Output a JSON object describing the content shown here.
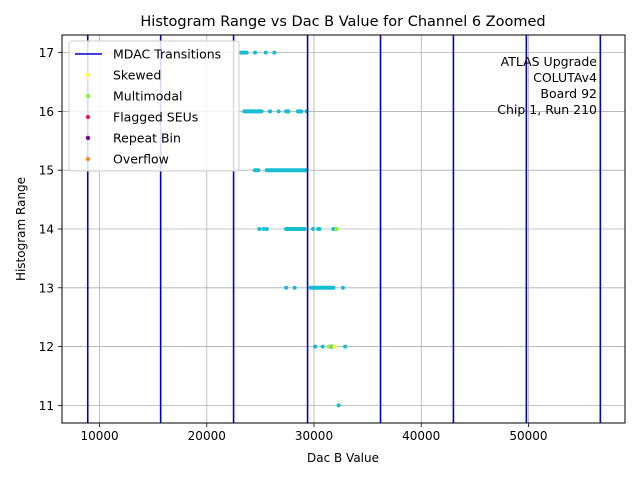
{
  "chart_data": {
    "type": "scatter",
    "title": "Histogram Range vs Dac B Value for Channel 6 Zoomed",
    "xlabel": "Dac B Value",
    "ylabel": "Histogram Range",
    "xlim": [
      6500,
      59000
    ],
    "ylim": [
      10.7,
      17.3
    ],
    "xticks": [
      10000,
      20000,
      30000,
      40000,
      50000
    ],
    "yticks": [
      11,
      12,
      13,
      14,
      15,
      16,
      17
    ],
    "grid": true,
    "legend_position": "upper-left",
    "annotation": [
      "ATLAS Upgrade",
      "COLUTAv4",
      "Board 92",
      "Chip 1, Run 210"
    ],
    "vlines": {
      "name": "MDAC Transitions",
      "color": "#0000cc",
      "x": [
        8900,
        15700,
        22500,
        29400,
        36200,
        43000,
        49800,
        56700
      ]
    },
    "legend": [
      {
        "label": "MDAC Transitions",
        "kind": "line",
        "color": "#0000cc"
      },
      {
        "label": "Skewed",
        "kind": "marker",
        "color": "#ffff33"
      },
      {
        "label": "Multimodal",
        "kind": "marker",
        "color": "#99ee33"
      },
      {
        "label": "Flagged SEUs",
        "kind": "marker",
        "color": "#dd2255"
      },
      {
        "label": "Repeat Bin",
        "kind": "marker",
        "color": "#770099"
      },
      {
        "label": "Overflow",
        "kind": "marker",
        "color": "#ff8822"
      }
    ],
    "point_color": "#17becf",
    "series": [
      {
        "y": 17,
        "runs": [
          [
            23000,
            23900
          ]
        ],
        "points": [
          24500,
          25500,
          26300
        ]
      },
      {
        "y": 16,
        "runs": [
          [
            23300,
            25300
          ],
          [
            25700,
            26100
          ],
          [
            27200,
            27800
          ],
          [
            28300,
            29000
          ]
        ],
        "points": [
          26700,
          29300
        ]
      },
      {
        "y": 15,
        "runs": [
          [
            24300,
            25000
          ],
          [
            25400,
            29500
          ]
        ],
        "points": []
      },
      {
        "y": 14,
        "runs": [
          [
            27200,
            29300
          ],
          [
            30200,
            30700
          ]
        ],
        "points": [
          24900,
          25300,
          25600,
          29900,
          31800,
          32100
        ]
      },
      {
        "y": 13,
        "runs": [
          [
            29500,
            32000
          ]
        ],
        "points": [
          27400,
          28200,
          32700
        ]
      },
      {
        "y": 12,
        "runs": [
          [
            31300,
            32000
          ]
        ],
        "points": [
          30100,
          30800,
          32900
        ]
      },
      {
        "y": 11,
        "runs": [],
        "points": [
          32300
        ]
      }
    ],
    "highlight_points": [
      {
        "x": 32100,
        "y": 14,
        "color": "#99ee33"
      },
      {
        "x": 31900,
        "y": 12,
        "color": "#ffff33"
      },
      {
        "x": 31400,
        "y": 12,
        "color": "#99ee33"
      }
    ]
  }
}
